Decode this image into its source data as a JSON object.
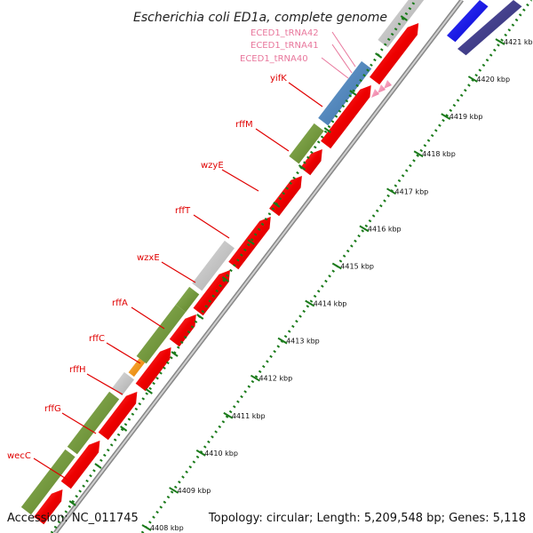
{
  "title": "Escherichia coli ED1a, complete genome",
  "footer": {
    "accession": "Accession: NC_011745",
    "summary": "Topology: circular; Length: 5,209,548 bp; Genes: 5,118"
  },
  "colors": {
    "forward_cds": "#e00000",
    "reverse_cds": "#6b8e23",
    "gene_label": "#e00000",
    "trna_label": "#e8779c",
    "tick": "#1a7a1a",
    "backbone": "#888888"
  },
  "ruler": {
    "unit": "kbp",
    "ticks": [
      {
        "kbp": 4408,
        "label": "4408 kbp"
      },
      {
        "kbp": 4409,
        "label": "4409 kbp"
      },
      {
        "kbp": 4410,
        "label": "4410 kbp"
      },
      {
        "kbp": 4411,
        "label": "4411 kbp"
      },
      {
        "kbp": 4412,
        "label": "4412 kbp"
      },
      {
        "kbp": 4413,
        "label": "4413 kbp"
      },
      {
        "kbp": 4414,
        "label": "4414 kbp"
      },
      {
        "kbp": 4415,
        "label": "4415 kbp"
      },
      {
        "kbp": 4416,
        "label": "4416 kbp"
      },
      {
        "kbp": 4417,
        "label": "4417 kbp"
      },
      {
        "kbp": 4418,
        "label": "4418 kbp"
      },
      {
        "kbp": 4419,
        "label": "4419 kbp"
      },
      {
        "kbp": 4420,
        "label": "4420 kbp"
      },
      {
        "kbp": 4421,
        "label": "4421 kbp"
      }
    ]
  },
  "gene_labels": [
    "wecC",
    "rffG",
    "rffH",
    "rffC",
    "rffA",
    "wzxE",
    "rffT",
    "wzyE",
    "rffM",
    "yifK"
  ],
  "trna_labels": [
    "ECED1_tRNA42",
    "ECED1_tRNA41",
    "ECED1_tRNA40"
  ]
}
